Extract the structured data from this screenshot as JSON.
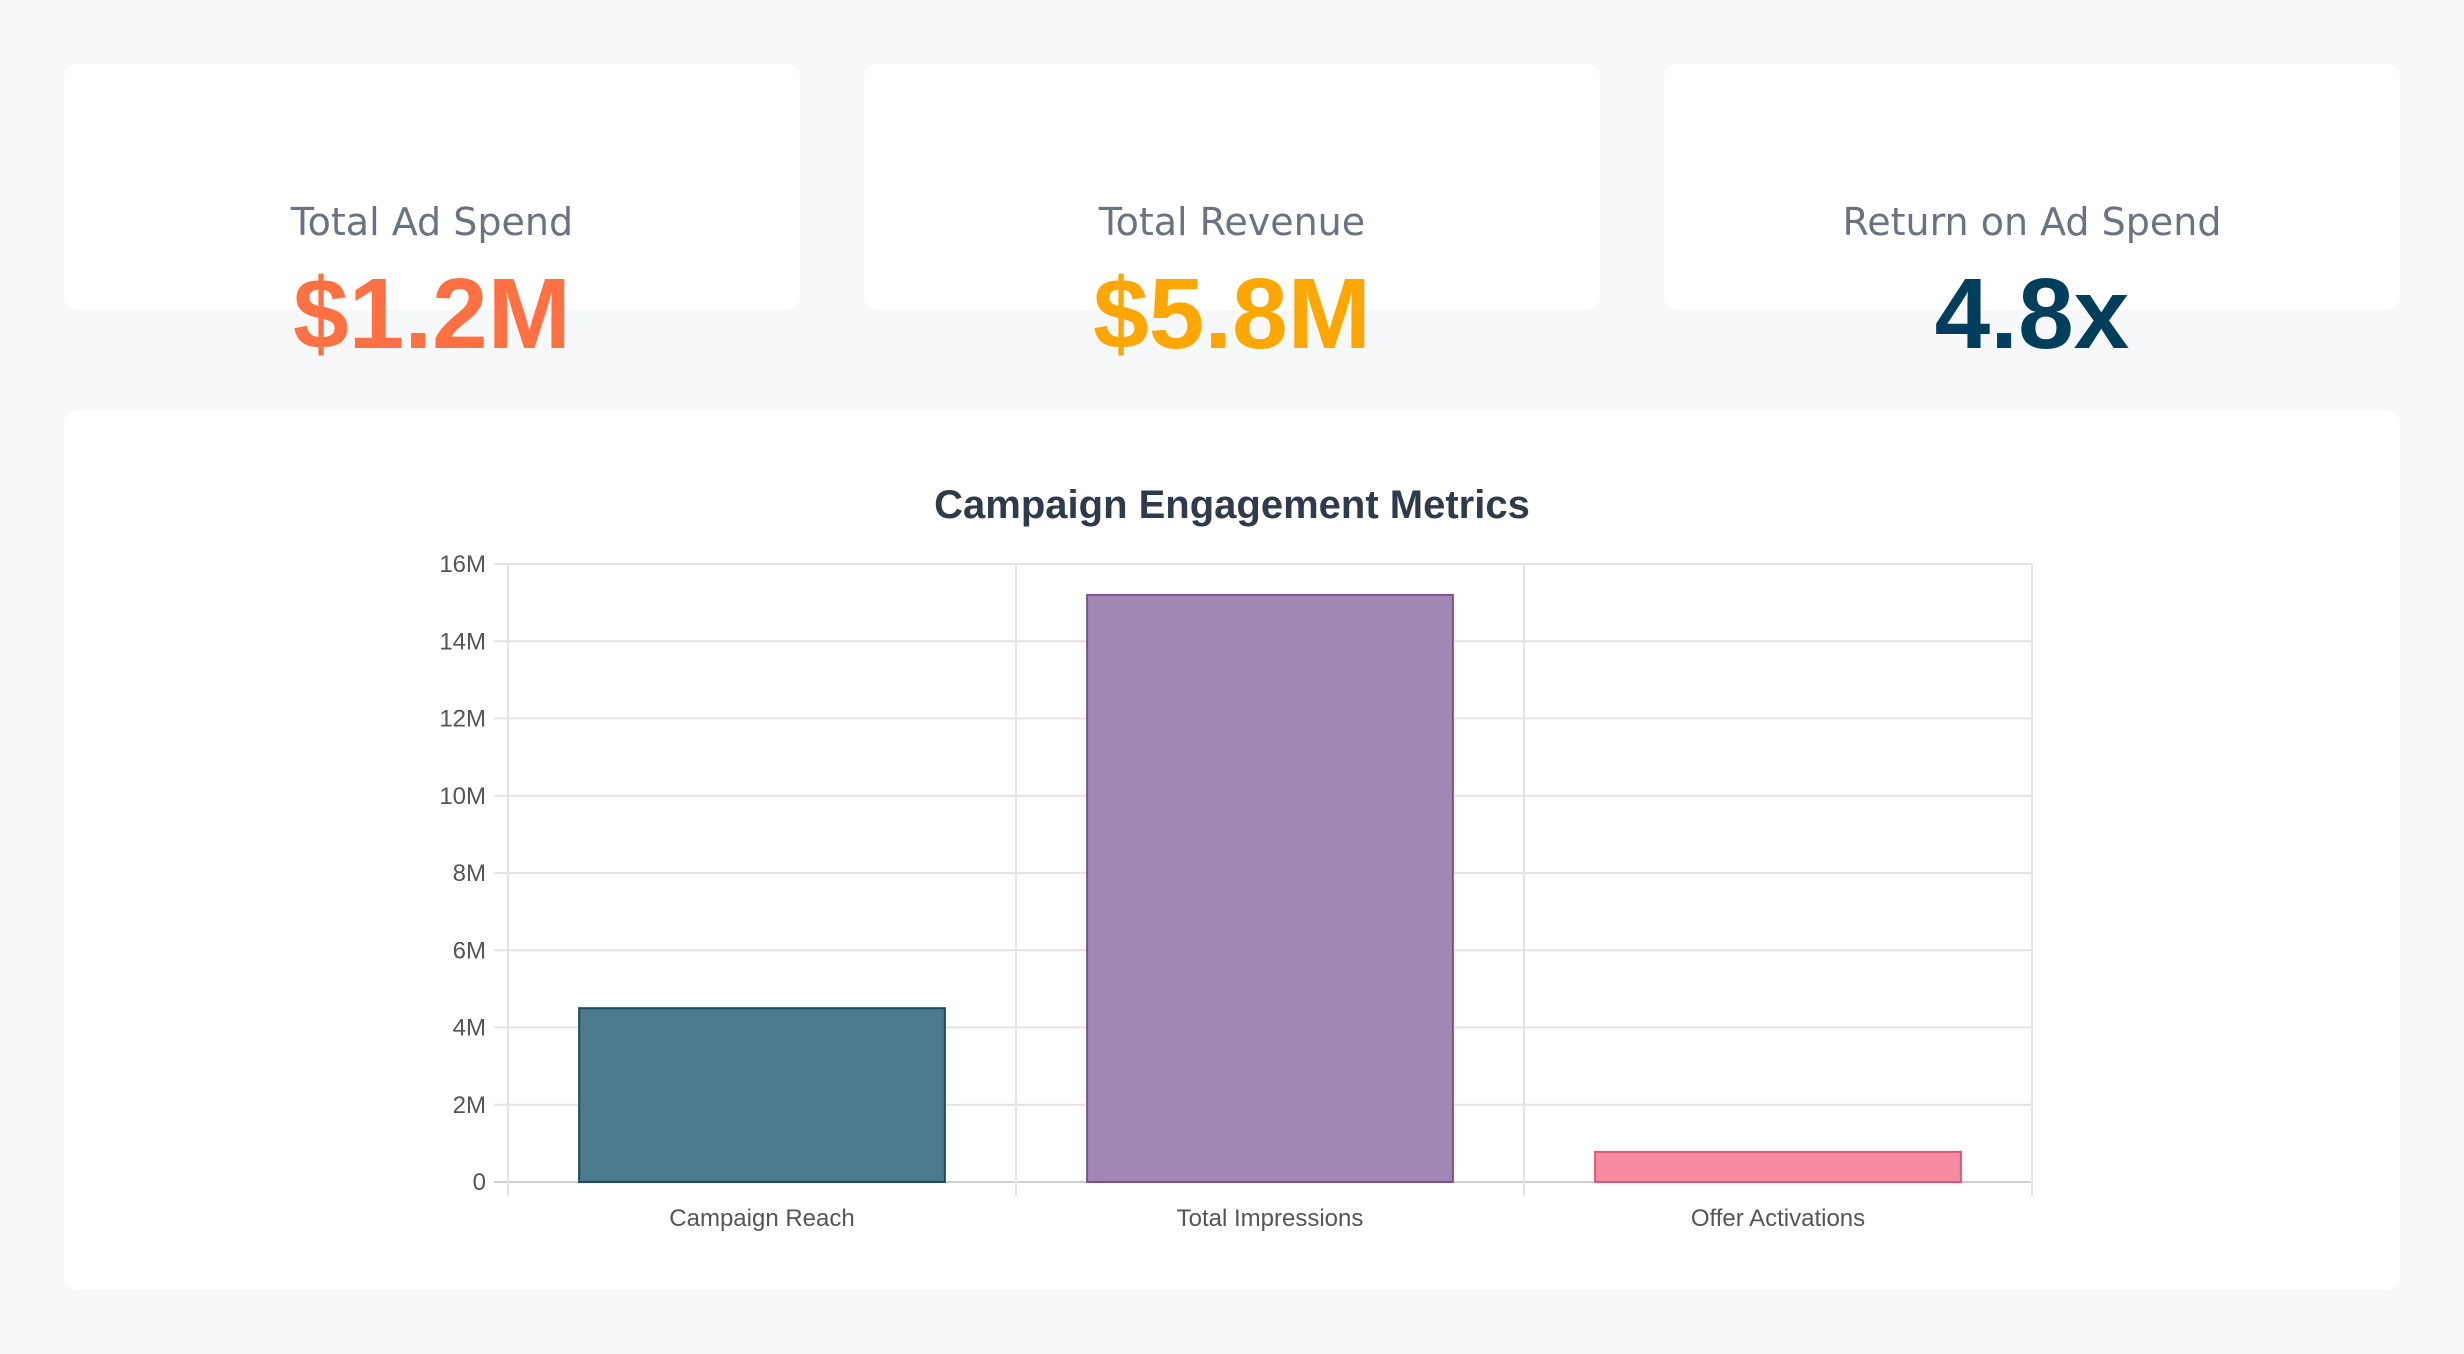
{
  "kpis": [
    {
      "label": "Total Ad Spend",
      "value": "$1.2M",
      "color": "#ff7043"
    },
    {
      "label": "Total Revenue",
      "value": "$5.8M",
      "color": "#ffa600"
    },
    {
      "label": "Return on Ad Spend",
      "value": "4.8x",
      "color": "#003f5c"
    }
  ],
  "chart_data": {
    "type": "bar",
    "title": "Campaign Engagement Metrics",
    "categories": [
      "Campaign Reach",
      "Total Impressions",
      "Offer Activations"
    ],
    "values": [
      4500000,
      15200000,
      780000
    ],
    "colors": [
      "#4b7a8f",
      "#a286b4",
      "#f48ba0"
    ],
    "border_colors": [
      "#1f4a5e",
      "#7a4f96",
      "#e0537a"
    ],
    "ylim": [
      0,
      16000000
    ],
    "yticks": [
      0,
      2000000,
      4000000,
      6000000,
      8000000,
      10000000,
      12000000,
      14000000,
      16000000
    ],
    "ytick_labels": [
      "0",
      "2M",
      "4M",
      "6M",
      "8M",
      "10M",
      "12M",
      "14M",
      "16M"
    ],
    "xlabel": "",
    "ylabel": "",
    "grid": true,
    "legend": "none"
  }
}
